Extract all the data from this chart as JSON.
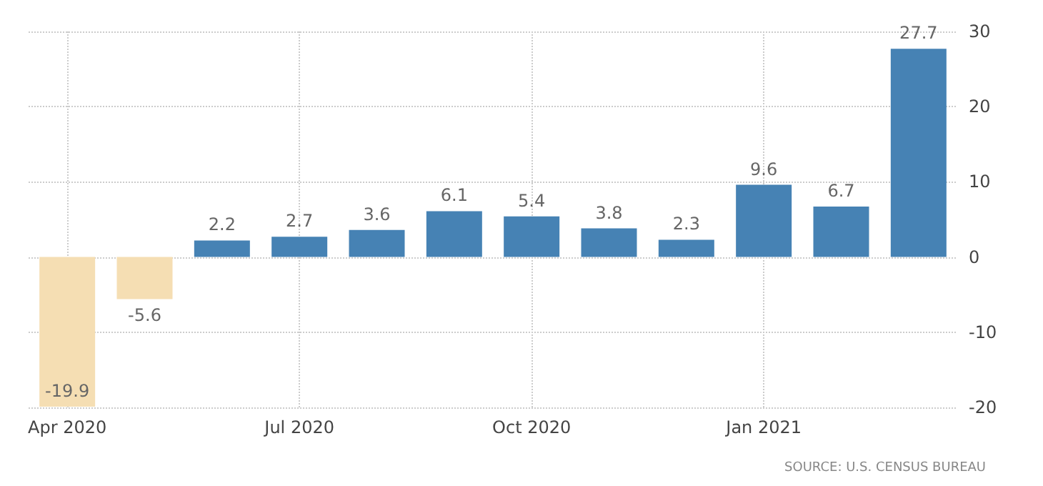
{
  "chart_data": {
    "type": "bar",
    "categories": [
      "Apr 2020",
      null,
      null,
      "Jul 2020",
      null,
      null,
      "Oct 2020",
      null,
      null,
      "Jan 2021",
      null,
      null
    ],
    "values": [
      -19.9,
      -5.6,
      2.2,
      2.7,
      3.6,
      6.1,
      5.4,
      3.8,
      2.3,
      9.6,
      6.7,
      27.7
    ],
    "colors": [
      "#f5deb3",
      "#f5deb3",
      "#4682b4",
      "#4682b4",
      "#4682b4",
      "#4682b4",
      "#4682b4",
      "#4682b4",
      "#4682b4",
      "#4682b4",
      "#4682b4",
      "#4682b4"
    ],
    "ylim": [
      -20,
      30
    ],
    "yticks": [
      -20,
      -10,
      0,
      10,
      20,
      30
    ],
    "grid": true,
    "data_labels": true,
    "annotations": [
      "SOURCE: U.S. CENSUS BUREAU"
    ]
  }
}
